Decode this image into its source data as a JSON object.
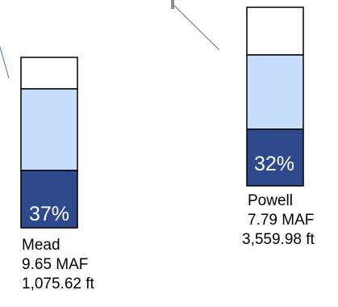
{
  "reservoirs": [
    {
      "name": "Mead",
      "volume": "9.65 MAF",
      "elevation": "1,075.62 ft",
      "percent_label": "37%",
      "percent_full": 37,
      "fill_light_top_fraction": 0.38
    },
    {
      "name": "Powell",
      "volume": "7.79 MAF",
      "elevation": "3,559.98 ft",
      "percent_label": "32%",
      "percent_full": 32,
      "fill_light_top_fraction": 0.3
    }
  ],
  "colors": {
    "full_fill": "#2E4A8C",
    "light_fill": "#C6DEFC",
    "empty_fill": "#FFFFFF",
    "outline": "#000000",
    "leader_line": "#4472C4",
    "percent_text": "#FFFFFF",
    "label_text": "#000000",
    "top_marker": "#8C8C9C"
  }
}
